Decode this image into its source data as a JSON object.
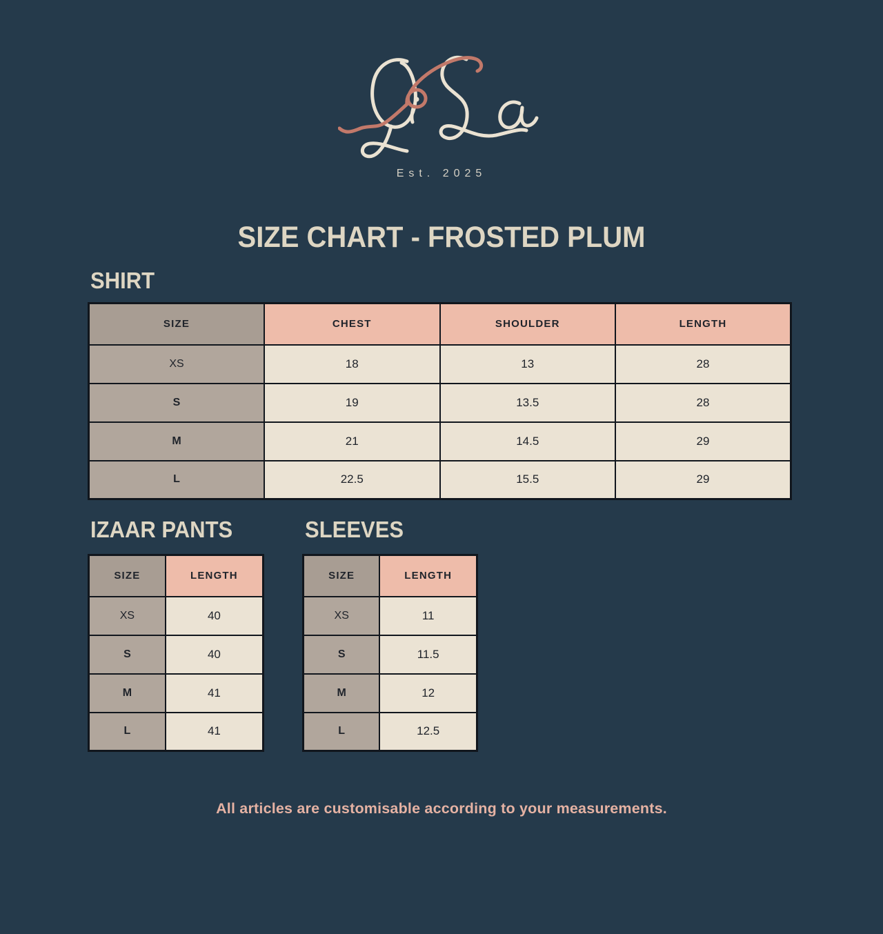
{
  "brand": {
    "logo_text": "QiSa",
    "established": "Est. 2025"
  },
  "page_title": "SIZE CHART - FROSTED PLUM",
  "tables": {
    "shirt": {
      "heading": "SHIRT",
      "columns": [
        "SIZE",
        "CHEST",
        "SHOULDER",
        "LENGTH"
      ],
      "rows": [
        [
          "XS",
          "18",
          "13",
          "28"
        ],
        [
          "S",
          "19",
          "13.5",
          "28"
        ],
        [
          "M",
          "21",
          "14.5",
          "29"
        ],
        [
          "L",
          "22.5",
          "15.5",
          "29"
        ]
      ]
    },
    "izaar": {
      "heading": "IZAAR PANTS",
      "columns": [
        "SIZE",
        "LENGTH"
      ],
      "rows": [
        [
          "XS",
          "40"
        ],
        [
          "S",
          "40"
        ],
        [
          "M",
          "41"
        ],
        [
          "L",
          "41"
        ]
      ]
    },
    "sleeves": {
      "heading": "SLEEVES",
      "columns": [
        "SIZE",
        "LENGTH"
      ],
      "rows": [
        [
          "XS",
          "11"
        ],
        [
          "S",
          "11.5"
        ],
        [
          "M",
          "12"
        ],
        [
          "L",
          "12.5"
        ]
      ]
    }
  },
  "footer_note": "All articles are customisable according to your measurements.",
  "colors": {
    "background": "#253a4b",
    "cream_text": "#ded6c3",
    "pink_header": "#eebcaa",
    "taupe_header": "#a89d93",
    "taupe_cell": "#b1a69c",
    "cream_cell": "#ebe3d4",
    "footer_pink": "#e5b2a3",
    "logo_cream": "#eae2d2",
    "logo_pink": "#c2796a"
  }
}
